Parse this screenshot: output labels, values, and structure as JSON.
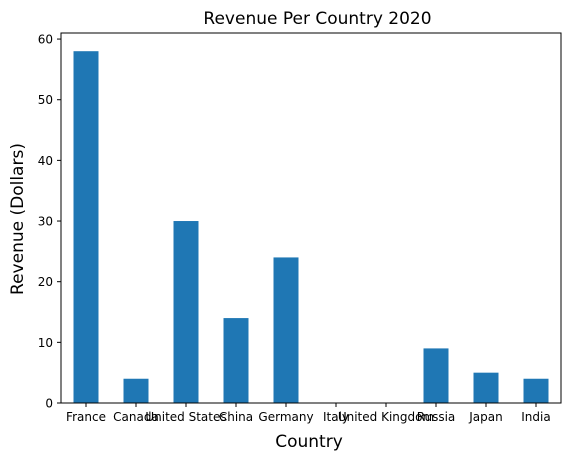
{
  "chart_data": {
    "type": "bar",
    "title": "Revenue Per Country 2020",
    "xlabel": "Country",
    "ylabel": "Revenue (Dollars)",
    "categories": [
      "France",
      "Canada",
      "United States",
      "China",
      "Germany",
      "Italy",
      "United Kingdom",
      "Russia",
      "Japan",
      "India"
    ],
    "values": [
      58,
      4,
      30,
      14,
      24,
      0,
      0,
      9,
      5,
      4
    ],
    "ylim": [
      0,
      61
    ],
    "yticks": [
      0,
      10,
      20,
      30,
      40,
      50,
      60
    ],
    "grid": false,
    "legend": "none",
    "colors": {
      "bar": "#1f77b4",
      "axis": "#000000",
      "background": "#ffffff"
    }
  }
}
